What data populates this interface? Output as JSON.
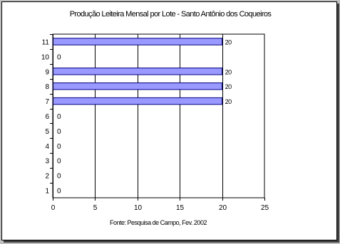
{
  "chart_data": {
    "type": "bar",
    "orientation": "horizontal",
    "title": "Produção Leiteira Mensal por Lote - Santo Antônio dos Coqueiros",
    "xlabel": "Fonte: Pesquisa de Campo, Fev. 2002",
    "ylabel": "",
    "categories": [
      "1",
      "2",
      "3",
      "4",
      "5",
      "6",
      "7",
      "8",
      "9",
      "10",
      "11"
    ],
    "values": [
      0,
      0,
      0,
      0,
      0,
      0,
      20,
      20,
      20,
      0,
      20
    ],
    "data_labels": [
      "0",
      "0",
      "0",
      "0",
      "0",
      "0",
      "20",
      "20",
      "20",
      "0",
      "20"
    ],
    "xlim": [
      0,
      25
    ],
    "xticks": [
      "0",
      "5",
      "10",
      "15",
      "20",
      "25"
    ],
    "grid": "vertical",
    "legend": "none",
    "bar_color": "#9999ff",
    "bar_edge": "#000080"
  }
}
